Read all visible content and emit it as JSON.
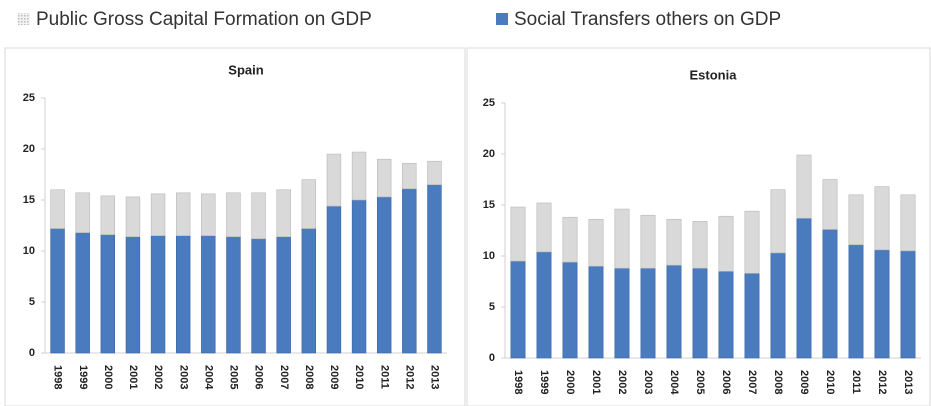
{
  "legend": {
    "items": [
      {
        "name": "Public Gross Capital Formation on GDP",
        "color": "#d9d9d9"
      },
      {
        "name": "Social Transfers others on GDP",
        "color": "#4a7bbf"
      }
    ]
  },
  "chart_data": [
    {
      "type": "stacked_bar",
      "title": "Spain",
      "categories": [
        "1998",
        "1999",
        "2000",
        "2001",
        "2002",
        "2003",
        "2004",
        "2005",
        "2006",
        "2007",
        "2008",
        "2009",
        "2010",
        "2011",
        "2012",
        "2013"
      ],
      "series": [
        {
          "values": [
            3.8,
            3.9,
            3.8,
            3.9,
            4.1,
            4.2,
            4.1,
            4.3,
            4.5,
            4.6,
            4.8,
            5.1,
            4.7,
            3.7,
            2.5,
            2.3
          ]
        },
        {
          "values": [
            12.2,
            11.8,
            11.6,
            11.4,
            11.5,
            11.5,
            11.5,
            11.4,
            11.2,
            11.4,
            12.2,
            14.4,
            15.0,
            15.3,
            16.1,
            16.5
          ]
        }
      ],
      "ylim": [
        0,
        25
      ],
      "yticks": [
        0,
        5,
        10,
        15,
        20,
        25
      ]
    },
    {
      "type": "stacked_bar",
      "title": "Estonia",
      "categories": [
        "1998",
        "1999",
        "2000",
        "2001",
        "2002",
        "2003",
        "2004",
        "2005",
        "2006",
        "2007",
        "2008",
        "2009",
        "2010",
        "2011",
        "2012",
        "2013"
      ],
      "series": [
        {
          "values": [
            5.3,
            4.8,
            4.4,
            4.6,
            5.8,
            5.2,
            4.5,
            4.6,
            5.4,
            6.1,
            6.2,
            6.2,
            4.9,
            4.9,
            6.2,
            5.5
          ]
        },
        {
          "values": [
            9.5,
            10.4,
            9.4,
            9.0,
            8.8,
            8.8,
            9.1,
            8.8,
            8.5,
            8.3,
            10.3,
            13.7,
            12.6,
            11.1,
            10.6,
            10.5
          ]
        }
      ],
      "ylim": [
        0,
        25
      ],
      "yticks": [
        0,
        5,
        10,
        15,
        20,
        25
      ]
    }
  ]
}
